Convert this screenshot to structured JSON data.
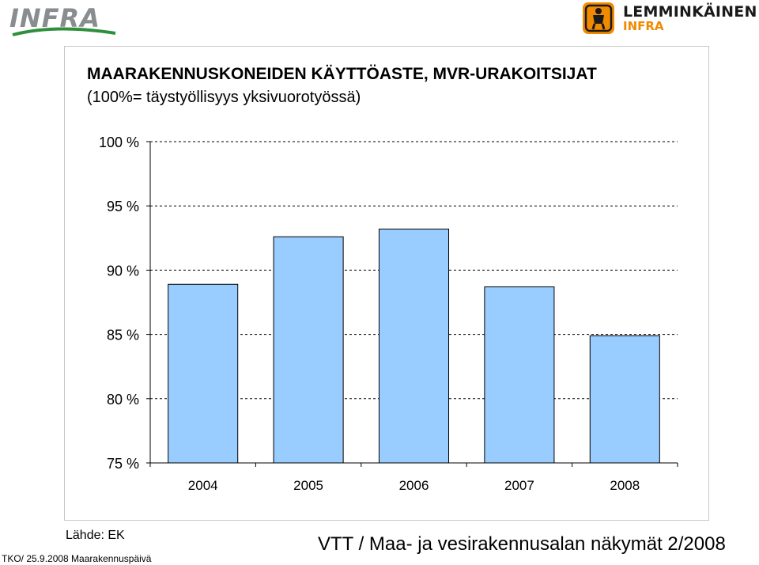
{
  "header": {
    "left_logo_text": "INFRA",
    "right_logo_name": "LEMMINKÄINEN",
    "right_logo_sub": "INFRA",
    "brand_orange": "#f08a00",
    "infra_grey": "#8a8d90",
    "infra_green": "#2f8f3a"
  },
  "chart_data": {
    "type": "bar",
    "title": "MAARAKENNUSKONEIDEN KÄYTTÖASTE,  MVR-URAKOITSIJAT",
    "subtitle": "(100%= täystyöllisyys yksivuorotyössä)",
    "xlabel": "",
    "ylabel": "",
    "categories": [
      "2004",
      "2005",
      "2006",
      "2007",
      "2008"
    ],
    "values": [
      88.9,
      92.6,
      93.2,
      88.7,
      84.9
    ],
    "ylim": [
      75,
      100
    ],
    "yticks": [
      75,
      80,
      85,
      90,
      95,
      100
    ],
    "ytick_labels": [
      "75 %",
      "80 %",
      "85 %",
      "90 %",
      "95 %",
      "100 %"
    ],
    "grid": "dashed horizontal",
    "bar_color": "#99ccff",
    "legend": "none"
  },
  "footer": {
    "source": "Lähde: EK",
    "left": "TKO/ 25.9.2008 Maarakennuspäivä",
    "right": "VTT / Maa- ja vesirakennusalan näkymät 2/2008"
  }
}
